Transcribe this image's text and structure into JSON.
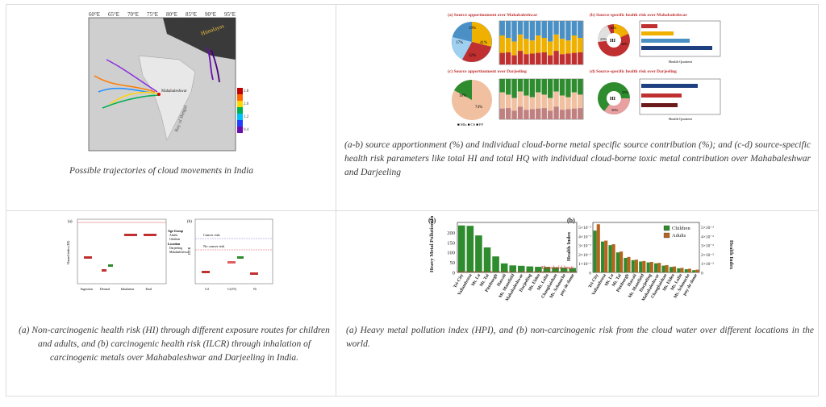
{
  "cells": [
    {
      "id": "trajectories",
      "caption": "Possible trajectories of cloud movements in India",
      "figure_labels": {
        "lon_ticks": [
          "60°E",
          "65°E",
          "70°E",
          "75°E",
          "80°E",
          "85°E",
          "90°E",
          "95°E"
        ],
        "himalaya": "Himalayas",
        "site": "Mahabaleshwar",
        "bay": "Bay of Bengal",
        "colorbar_ticks": [
          "2.8",
          "2.4",
          "2.0",
          "1.6",
          "1.2",
          "0.8",
          "0.4"
        ]
      }
    },
    {
      "id": "source-apportionment",
      "caption": "(a-b) source apportionment (%) and individual cloud-borne metal specific source contribution (%); and (c-d) source-specific health risk parameters like total HI and total HQ with individual cloud-borne toxic metal contribution over Mahabaleshwar and Darjeeling",
      "panels": [
        {
          "label": "(a) Source apportionment over Mahabaleshwar",
          "pie": [
            "10%",
            "41%",
            "32%",
            "17%"
          ]
        },
        {
          "label": "(b) Source-specific health risk over Mahabaleshwar",
          "pie_center": "HI",
          "pie": [
            "10%",
            "23%",
            "20%"
          ],
          "axis": "Health Quotient"
        },
        {
          "label": "(c) Source apportionment over Darjeeling",
          "pie": [
            "18%",
            "74%"
          ],
          "legend": "■ MIx ■ CS ■ FF"
        },
        {
          "label": "(d) Source-specific health risk over Darjeeling",
          "pie_center": "HI",
          "pie": [
            "55%",
            "30%"
          ],
          "axis": "Health Quotient"
        }
      ]
    },
    {
      "id": "exposure-routes",
      "caption": "(a) Non-carcinogenic health risk (HI) through different exposure routes for children and adults, and (b) carcinogenic health risk (ILCR) through inhalation of carcinogenic metals over Mahabaleshwar and Darjeeling in India.",
      "panel_a": {
        "tag": "(a)",
        "ylabel": "Hazard index (HI)",
        "x": [
          "Ingestion",
          "Dermal",
          "Inhalation",
          "Total"
        ]
      },
      "panel_b": {
        "tag": "(b)",
        "ylabel": "ILCR",
        "cancer": "Cancer risk",
        "nocancer": "No cancer risk",
        "x": [
          "Cd",
          "Cr(VI)",
          "Ni"
        ]
      },
      "legend": {
        "title1": "Age Group",
        "i1": "Adults",
        "i2": "Children",
        "title2": "Location",
        "i3": "Darjeeling",
        "i4": "Mahabaleshwar"
      }
    },
    {
      "id": "hpi-world",
      "caption": "(a) Heavy metal pollution index (HPI), and (b) non-carcinogenic risk from the cloud water over different locations in the world."
    }
  ],
  "chart_data": [
    {
      "type": "bar",
      "title": "(a)",
      "ylabel": "Heavy Metal Pollution Index",
      "yticks": [
        "0",
        "50",
        "100",
        "150",
        "200"
      ],
      "ylim": [
        0,
        250
      ],
      "categories": [
        "Tri-City",
        "Vallambrosa",
        "Mt. Lu",
        "Mt. Tai",
        "Pittsburgh",
        "Hawaii",
        "Mt. Mansfield",
        "Mahabaleshwar",
        "Darjeeling",
        "Mt. Elden",
        "Mt. Lulin",
        "Changbaishan",
        "Mt. Schmucke",
        "puy de dome"
      ],
      "values": [
        235,
        233,
        185,
        125,
        80,
        45,
        35,
        33,
        30,
        28,
        27,
        25,
        24,
        22
      ],
      "threshold": 100,
      "threshold_label": "Threshold limit"
    },
    {
      "type": "bar",
      "title": "(b)",
      "ylabel": "Health Index",
      "y2label": "Health Index",
      "yticks": [
        "0",
        "1×10⁻¹",
        "2×10⁻¹",
        "3×10⁻¹",
        "4×10⁻¹",
        "5×10⁻¹"
      ],
      "y2ticks": [
        "0",
        "1×10⁻²",
        "2×10⁻²",
        "3×10⁻²",
        "4×10⁻²",
        "5×10⁻²"
      ],
      "ylim": [
        0,
        5.5
      ],
      "categories": [
        "Tri-City",
        "Vallambrosa",
        "Mt. Lu",
        "Mt. Tai",
        "Pittsburgh",
        "Hawaii",
        "Mt. Mansfield",
        "Darjeeling",
        "Mahabaleshwar",
        "Changbaishan",
        "Mt. Elden",
        "Mt. Lulin",
        "Mt. Schmucke",
        "puy de dome"
      ],
      "series": [
        {
          "name": "Children",
          "values": [
            4.6,
            3.4,
            3.0,
            2.2,
            1.6,
            1.35,
            1.2,
            1.1,
            1.0,
            0.75,
            0.6,
            0.45,
            0.35,
            0.25
          ]
        },
        {
          "name": "Adults",
          "values": [
            5.3,
            3.5,
            3.1,
            2.3,
            1.7,
            1.4,
            1.25,
            1.15,
            1.05,
            0.8,
            0.65,
            0.5,
            0.4,
            0.3
          ]
        }
      ],
      "colors": {
        "Children": "#2e8b2e",
        "Adults": "#b5651d"
      }
    }
  ]
}
